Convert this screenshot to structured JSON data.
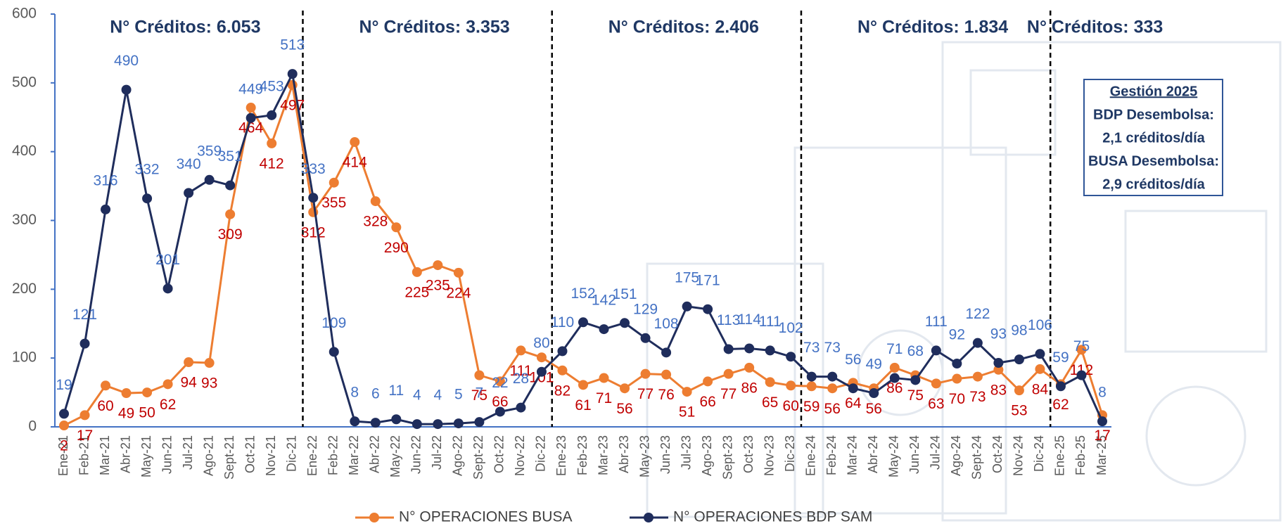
{
  "chart_data": {
    "type": "line",
    "categories": [
      "Ene-21",
      "Feb-21",
      "Mar-21",
      "Abr-21",
      "May-21",
      "Jun-21",
      "Jul-21",
      "Ago-21",
      "Sept-21",
      "Oct-21",
      "Nov-21",
      "Dic-21",
      "Ene-22",
      "Feb-22",
      "Mar-22",
      "Abr-22",
      "May-22",
      "Jun-22",
      "Jul-22",
      "Ago-22",
      "Sept-22",
      "Oct-22",
      "Nov-22",
      "Dic-22",
      "Ene-23",
      "Feb-23",
      "Mar-23",
      "Abr-23",
      "May-23",
      "Jun-23",
      "Jul-23",
      "Ago-23",
      "Sept-23",
      "Oct-23",
      "Nov-23",
      "Dic-23",
      "Ene-24",
      "Feb-24",
      "Mar-24",
      "Abr-24",
      "May-24",
      "Jun-24",
      "Jul-24",
      "Ago-24",
      "Sept-24",
      "Oct-24",
      "Nov-24",
      "Dic-24",
      "Ene-25",
      "Feb-25",
      "Mar-25"
    ],
    "series": [
      {
        "name": "N° OPERACIONES BUSA",
        "color": "#ed7d31",
        "label_color": "#c00000",
        "values": [
          2,
          17,
          60,
          49,
          50,
          62,
          94,
          93,
          309,
          464,
          412,
          497,
          312,
          355,
          414,
          328,
          290,
          225,
          235,
          224,
          75,
          66,
          111,
          101,
          82,
          61,
          71,
          56,
          77,
          76,
          51,
          66,
          77,
          86,
          65,
          60,
          59,
          56,
          64,
          56,
          86,
          75,
          63,
          70,
          73,
          83,
          53,
          84,
          62,
          112,
          17
        ]
      },
      {
        "name": "N° OPERACIONES BDP SAM",
        "color": "#1f2d5c",
        "label_color": "#4472c4",
        "values": [
          19,
          121,
          316,
          490,
          332,
          201,
          340,
          359,
          351,
          449,
          453,
          513,
          333,
          109,
          8,
          6,
          11,
          4,
          4,
          5,
          7,
          22,
          28,
          80,
          110,
          152,
          142,
          151,
          129,
          108,
          175,
          171,
          113,
          114,
          111,
          102,
          73,
          73,
          56,
          49,
          71,
          68,
          111,
          92,
          122,
          93,
          98,
          106,
          59,
          75,
          8
        ]
      }
    ],
    "sections": [
      "N° Créditos: 6.053",
      "N° Créditos: 3.353",
      "N° Créditos: 2.406",
      "N° Créditos: 1.834",
      "N° Créditos: 333"
    ],
    "note": [
      "Gestión 2025",
      "BDP Desembolsa:",
      "2,1 créditos/día",
      "BUSA Desembolsa:",
      "2,9 créditos/día"
    ],
    "ylim": [
      0,
      600
    ],
    "yticks": [
      0,
      100,
      200,
      300,
      400,
      500,
      600
    ],
    "grid": false,
    "legend": "bottom"
  }
}
